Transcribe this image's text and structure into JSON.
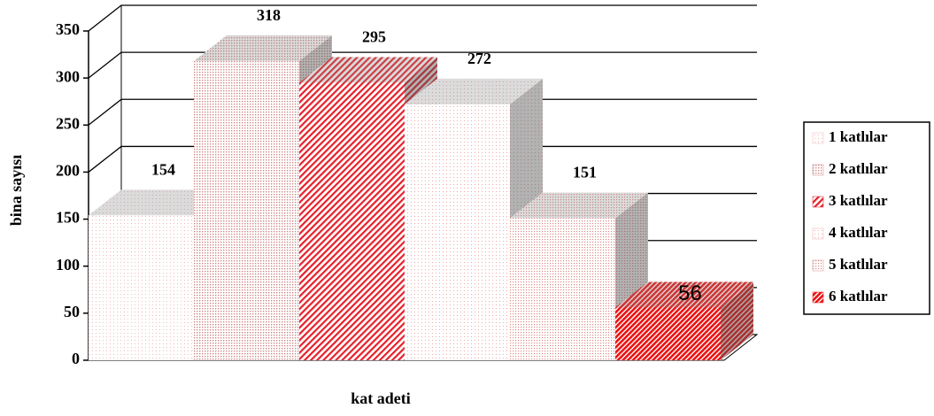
{
  "chart_data": {
    "type": "bar",
    "x_label": "kat adeti",
    "y_label": "bina sayısı",
    "categories": [
      null
    ],
    "series": [
      {
        "name": "1 katlılar",
        "color": "#f0b8b8",
        "values": [
          154
        ]
      },
      {
        "name": "2 katlılar",
        "color": "#d08888",
        "values": [
          318
        ]
      },
      {
        "name": "3 katlılar",
        "color": "#e8202a",
        "values": [
          295
        ]
      },
      {
        "name": "4 katlılar",
        "color": "#f0a8a8",
        "values": [
          272
        ]
      },
      {
        "name": "5 katlılar",
        "color": "#e08a8a",
        "values": [
          151
        ]
      },
      {
        "name": "6 katlılar",
        "color": "#ee1111",
        "values": [
          56
        ]
      }
    ],
    "ylim": [
      0,
      350
    ],
    "yticks": [
      0,
      50,
      100,
      150,
      200,
      250,
      300,
      350
    ],
    "grid": true,
    "legend": "right"
  }
}
